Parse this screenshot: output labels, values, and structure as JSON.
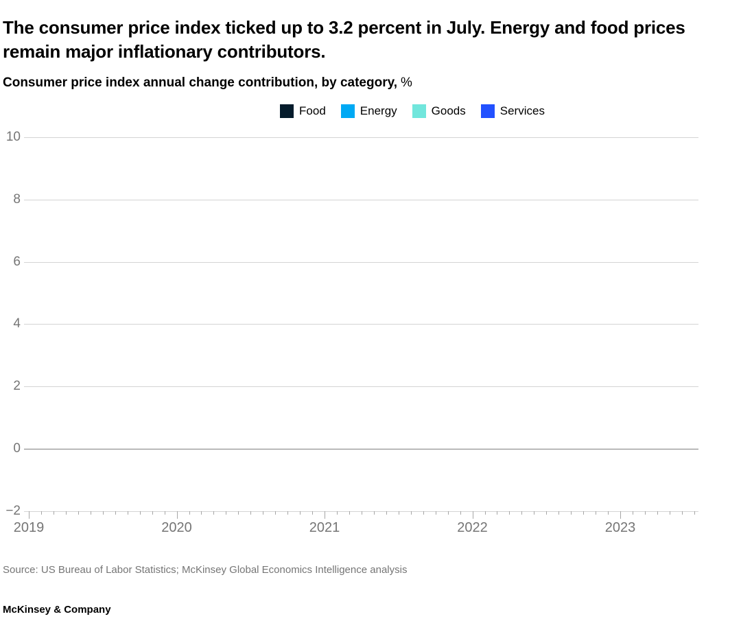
{
  "page": {
    "headline": "The consumer price index ticked up to 3.2 percent in July. Energy and food prices remain major inflationary contributors.",
    "subtitle": {
      "text": "Consumer price index annual change contribution, by category,",
      "unit": "%"
    },
    "source": "Source: US Bureau of Labor Statistics; McKinsey Global Economics Intelligence analysis",
    "footer": "McKinsey & Company"
  },
  "legend": {
    "items": [
      {
        "label": "Food",
        "color": "#051C2C"
      },
      {
        "label": "Energy",
        "color": "#00A9F4"
      },
      {
        "label": "Goods",
        "color": "#71E6DC"
      },
      {
        "label": "Services",
        "color": "#2251FF"
      }
    ]
  },
  "chart_data": {
    "type": "bar",
    "stacked": true,
    "title": "Consumer price index annual change contribution, by category, %",
    "series": [
      {
        "name": "Food",
        "color": "#051C2C",
        "values": []
      },
      {
        "name": "Energy",
        "color": "#00A9F4",
        "values": []
      },
      {
        "name": "Goods",
        "color": "#71E6DC",
        "values": []
      },
      {
        "name": "Services",
        "color": "#2251FF",
        "values": []
      }
    ],
    "plot_area_empty": true,
    "x_axis": {
      "tick_labels": [
        "2019",
        "2020",
        "2021",
        "2022",
        "2023"
      ],
      "minor_ticks": "monthly",
      "total_month_ticks": 55
    },
    "y_axis": {
      "ticks": [
        10,
        8,
        6,
        4,
        2,
        0,
        -2
      ],
      "tick_labels": [
        "10",
        "8",
        "6",
        "4",
        "2",
        "0",
        "−2"
      ],
      "lim": [
        -2,
        10
      ]
    },
    "grid": "horizontal",
    "zero_line": true,
    "legend_position": "top-center",
    "colors": {
      "gridline": "#d4d4d4",
      "zero_line": "#7d7d7d",
      "tick": "#a6a6a6",
      "axis_text": "#757575"
    }
  }
}
